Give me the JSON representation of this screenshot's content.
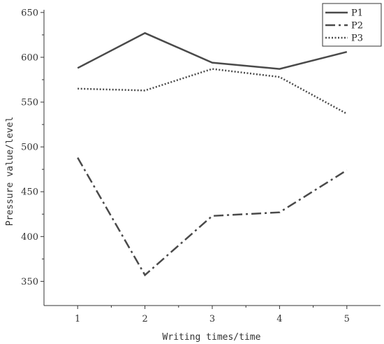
{
  "chart_data": {
    "type": "line",
    "title": "",
    "xlabel": "Writing times/time",
    "ylabel": "Pressure value/level",
    "x": [
      1,
      2,
      3,
      4,
      5
    ],
    "x_tick_labels": [
      "1",
      "2",
      "3",
      "4",
      "5"
    ],
    "xlim": [
      0.5,
      5.5
    ],
    "y_tick_labels": [
      "350",
      "400",
      "450",
      "500",
      "550",
      "600",
      "650"
    ],
    "ylim": [
      323,
      653
    ],
    "grid": false,
    "legend_position": "top-right",
    "series": [
      {
        "name": "P1",
        "values": [
          588,
          627,
          594,
          587,
          606
        ],
        "dash": "solid",
        "color": "#4a4a4a"
      },
      {
        "name": "P2",
        "values": [
          488,
          357,
          423,
          427,
          474
        ],
        "dash": "dashdot",
        "color": "#4a4a4a"
      },
      {
        "name": "P3",
        "values": [
          565,
          563,
          587,
          578,
          537
        ],
        "dash": "dotted",
        "color": "#4a4a4a"
      }
    ]
  }
}
